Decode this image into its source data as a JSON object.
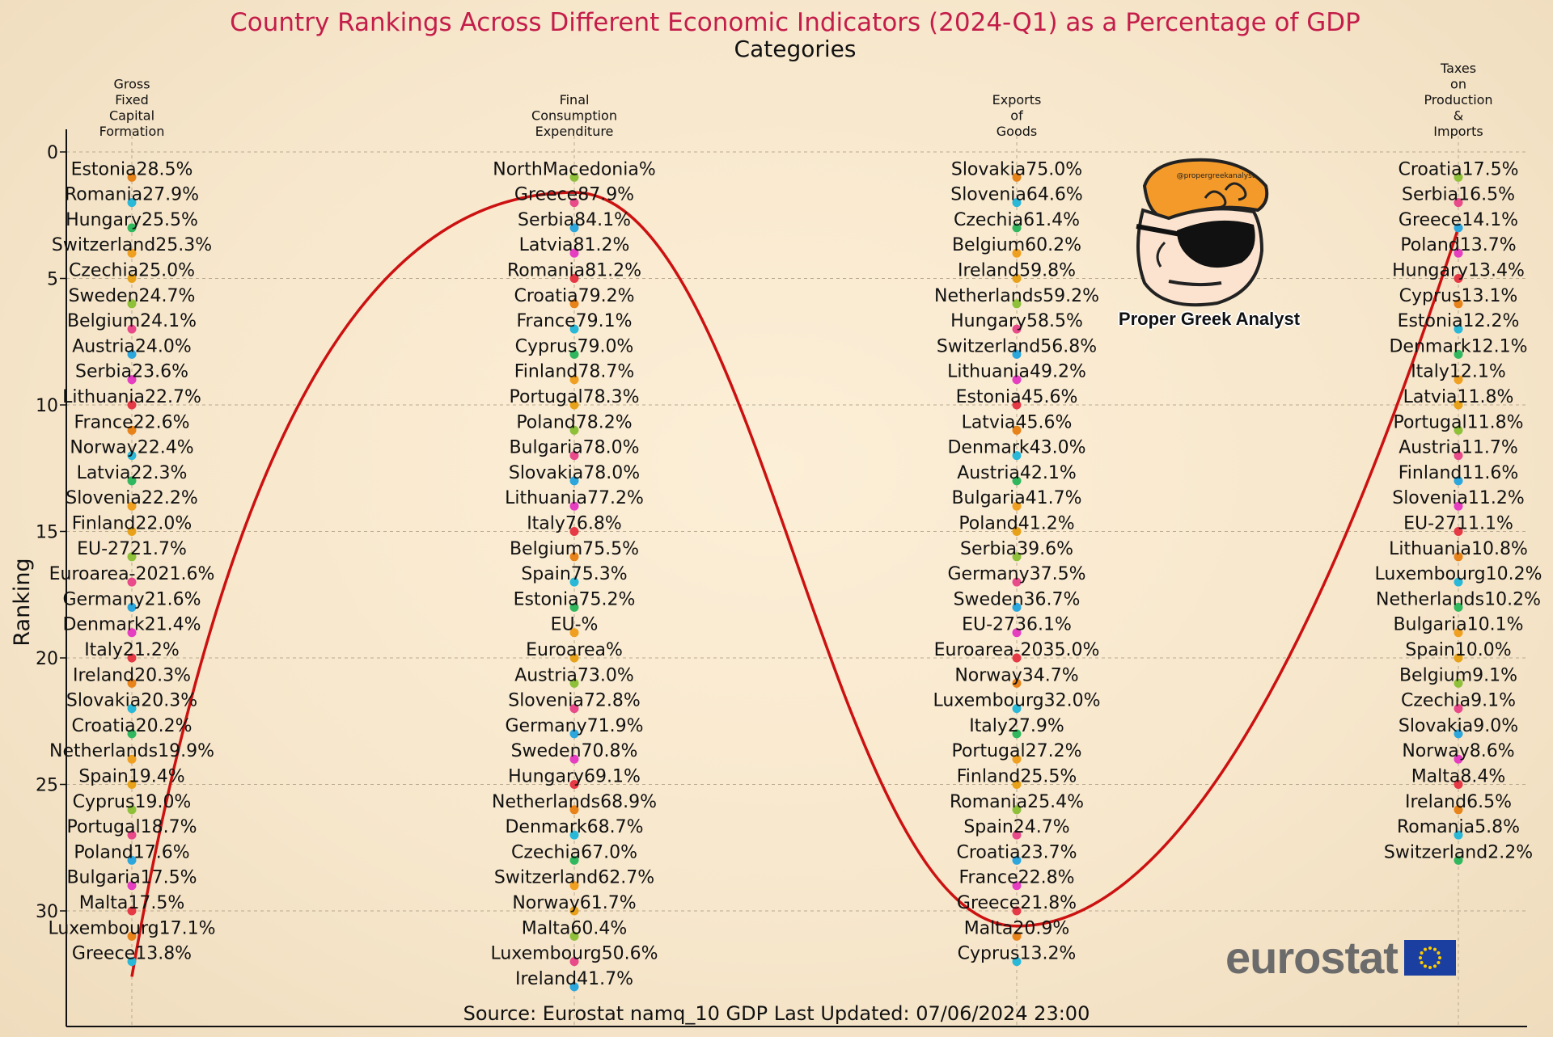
{
  "chart_data": {
    "type": "scatter",
    "title": "Country Rankings Across Different Economic Indicators (2024-Q1) as a Percentage of GDP",
    "subtitle": "Categories",
    "ylabel": "Ranking",
    "ylim": [
      34.5,
      0
    ],
    "yticks": [
      0,
      5,
      10,
      15,
      20,
      25,
      30
    ],
    "grid": true,
    "categories": [
      {
        "name_lines": [
          "Gross",
          "Fixed",
          "Capital",
          "Formation"
        ]
      },
      {
        "name_lines": [
          "Final",
          "Consumption",
          "Expenditure"
        ]
      },
      {
        "name_lines": [
          "Exports",
          "of",
          "Goods"
        ]
      },
      {
        "name_lines": [
          "Taxes",
          "on",
          "Production",
          "&",
          "Imports"
        ]
      }
    ],
    "series": [
      {
        "category": "Gross Fixed Capital Formation",
        "entries": [
          "Estonia28.5%",
          "Romania27.9%",
          "Hungary25.5%",
          "Switzerland25.3%",
          "Czechia25.0%",
          "Sweden24.7%",
          "Belgium24.1%",
          "Austria24.0%",
          "Serbia23.6%",
          "Lithuania22.7%",
          "France22.6%",
          "Norway22.4%",
          "Latvia22.3%",
          "Slovenia22.2%",
          "Finland22.0%",
          "EU-2721.7%",
          "Euroarea-2021.6%",
          "Germany21.6%",
          "Denmark21.4%",
          "Italy21.2%",
          "Ireland20.3%",
          "Slovakia20.3%",
          "Croatia20.2%",
          "Netherlands19.9%",
          "Spain19.4%",
          "Cyprus19.0%",
          "Portugal18.7%",
          "Poland17.6%",
          "Bulgaria17.5%",
          "Malta17.5%",
          "Luxembourg17.1%",
          "Greece13.8%"
        ]
      },
      {
        "category": "Final Consumption Expenditure",
        "entries": [
          "NorthMacedonia%",
          "Greece87.9%",
          "Serbia84.1%",
          "Latvia81.2%",
          "Romania81.2%",
          "Croatia79.2%",
          "France79.1%",
          "Cyprus79.0%",
          "Finland78.7%",
          "Portugal78.3%",
          "Poland78.2%",
          "Bulgaria78.0%",
          "Slovakia78.0%",
          "Lithuania77.2%",
          "Italy76.8%",
          "Belgium75.5%",
          "Spain75.3%",
          "Estonia75.2%",
          "EU-%",
          "Euroarea%",
          "Austria73.0%",
          "Slovenia72.8%",
          "Germany71.9%",
          "Sweden70.8%",
          "Hungary69.1%",
          "Netherlands68.9%",
          "Denmark68.7%",
          "Czechia67.0%",
          "Switzerland62.7%",
          "Norway61.7%",
          "Malta60.4%",
          "Luxembourg50.6%",
          "Ireland41.7%"
        ]
      },
      {
        "category": "Exports of Goods",
        "entries": [
          "Slovakia75.0%",
          "Slovenia64.6%",
          "Czechia61.4%",
          "Belgium60.2%",
          "Ireland59.8%",
          "Netherlands59.2%",
          "Hungary58.5%",
          "Switzerland56.8%",
          "Lithuania49.2%",
          "Estonia45.6%",
          "Latvia45.6%",
          "Denmark43.0%",
          "Austria42.1%",
          "Bulgaria41.7%",
          "Poland41.2%",
          "Serbia39.6%",
          "Germany37.5%",
          "Sweden36.7%",
          "EU-2736.1%",
          "Euroarea-2035.0%",
          "Norway34.7%",
          "Luxembourg32.0%",
          "Italy27.9%",
          "Portugal27.2%",
          "Finland25.5%",
          "Romania25.4%",
          "Spain24.7%",
          "Croatia23.7%",
          "France22.8%",
          "Greece21.8%",
          "Malta20.9%",
          "Cyprus13.2%"
        ]
      },
      {
        "category": "Taxes on Production & Imports",
        "entries": [
          "Croatia17.5%",
          "Serbia16.5%",
          "Greece14.1%",
          "Poland13.7%",
          "Hungary13.4%",
          "Cyprus13.1%",
          "Estonia12.2%",
          "Denmark12.1%",
          "Italy12.1%",
          "Latvia11.8%",
          "Portugal11.8%",
          "Austria11.7%",
          "Finland11.6%",
          "Slovenia11.2%",
          "EU-2711.1%",
          "Lithuania10.8%",
          "Luxembourg10.2%",
          "Netherlands10.2%",
          "Bulgaria10.1%",
          "Spain10.0%",
          "Belgium9.1%",
          "Czechia9.1%",
          "Slovakia9.0%",
          "Norway8.6%",
          "Malta8.4%",
          "Ireland6.5%",
          "Romania5.8%",
          "Switzerland2.2%"
        ]
      }
    ],
    "highlight_line": {
      "color": "#cc1111",
      "description": "red curve tracing Greece's rank across the categories",
      "points": [
        [
          0,
          32
        ],
        [
          1,
          1.6
        ],
        [
          2,
          30.6
        ],
        [
          3,
          3
        ]
      ]
    },
    "dot_palette": [
      "#e8831a",
      "#2ba7dd",
      "#e8a21a",
      "#2ab8d8",
      "#e63ec1",
      "#8fc03a",
      "#31b85e",
      "#e63946",
      "#e84a8a",
      "#f0a020"
    ]
  },
  "annotations": {
    "source": "Source: Eurostat namq_10 GDP Last Updated: 07/06/2024 23:00",
    "watermark_caption": "Proper Greek Analyst",
    "watermark_handle": "@propergreekanalyst",
    "logo_text": "eurostat"
  },
  "colors": {
    "title": "#c41d4a",
    "line": "#cc1111",
    "grid": "#b9a98f"
  }
}
